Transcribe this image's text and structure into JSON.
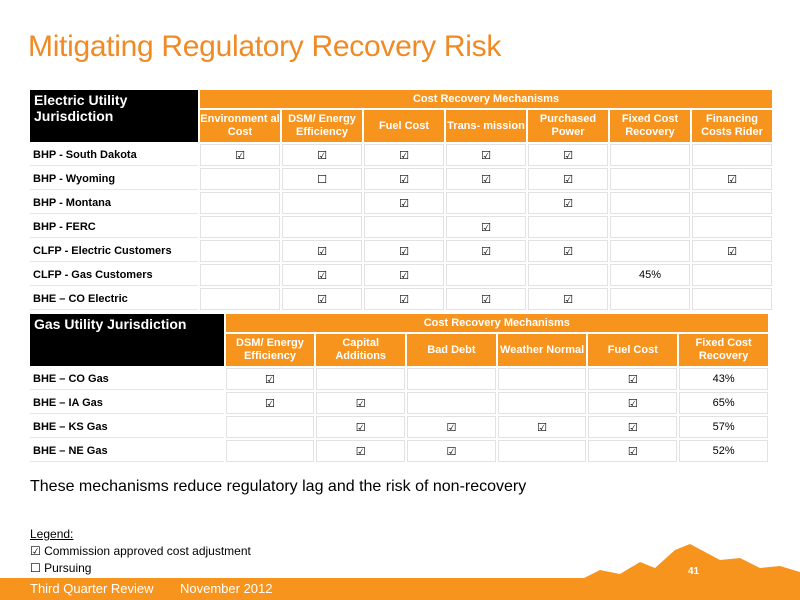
{
  "title": "Mitigating Regulatory Recovery Risk",
  "electric": {
    "jurisdiction_header": "Electric Utility Jurisdiction",
    "mechanisms_header": "Cost Recovery Mechanisms",
    "columns": [
      "Environment al Cost",
      "DSM/ Energy Efficiency",
      "Fuel Cost",
      "Trans- mission",
      "Purchased Power",
      "Fixed Cost Recovery",
      "Financing Costs Rider"
    ],
    "rows": [
      {
        "label": "BHP - South Dakota",
        "cells": [
          "☑",
          "☑",
          "☑",
          "☑",
          "☑",
          "",
          ""
        ]
      },
      {
        "label": "BHP - Wyoming",
        "cells": [
          "",
          "☐",
          "☑",
          "☑",
          "☑",
          "",
          "☑"
        ]
      },
      {
        "label": "BHP - Montana",
        "cells": [
          "",
          "",
          "☑",
          "",
          "☑",
          "",
          ""
        ]
      },
      {
        "label": "BHP - FERC",
        "cells": [
          "",
          "",
          "",
          "☑",
          "",
          "",
          ""
        ]
      },
      {
        "label": "CLFP - Electric Customers",
        "cells": [
          "",
          "☑",
          "☑",
          "☑",
          "☑",
          "",
          "☑"
        ]
      },
      {
        "label": "CLFP - Gas Customers",
        "cells": [
          "",
          "☑",
          "☑",
          "",
          "",
          "45%",
          ""
        ]
      },
      {
        "label": "BHE – CO Electric",
        "cells": [
          "",
          "☑",
          "☑",
          "☑",
          "☑",
          "",
          ""
        ]
      }
    ]
  },
  "gas": {
    "jurisdiction_header": "Gas Utility Jurisdiction",
    "mechanisms_header": "Cost Recovery Mechanisms",
    "columns": [
      "DSM/ Energy Efficiency",
      "Capital Additions",
      "Bad Debt",
      "Weather Normal",
      "Fuel Cost",
      "Fixed Cost Recovery"
    ],
    "rows": [
      {
        "label": "BHE – CO Gas",
        "cells": [
          "☑",
          "",
          "",
          "",
          "☑",
          "43%"
        ]
      },
      {
        "label": "BHE – IA Gas",
        "cells": [
          "☑",
          "☑",
          "",
          "",
          "☑",
          "65%"
        ]
      },
      {
        "label": "BHE – KS Gas",
        "cells": [
          "",
          "☑",
          "☑",
          "☑",
          "☑",
          "57%"
        ]
      },
      {
        "label": "BHE – NE Gas",
        "cells": [
          "",
          "☑",
          "☑",
          "",
          "☑",
          "52%"
        ]
      }
    ]
  },
  "statement": "These mechanisms  reduce regulatory lag and the risk of non-recovery",
  "legend": {
    "title": "Legend:",
    "items": [
      "☑ Commission approved cost adjustment",
      "☐ Pursuing"
    ]
  },
  "footer": {
    "review": "Third Quarter Review",
    "date": "November 2012",
    "page": "41"
  },
  "colors": {
    "accent": "#f7941d",
    "title": "#f08a24",
    "header_dark": "#000000"
  }
}
